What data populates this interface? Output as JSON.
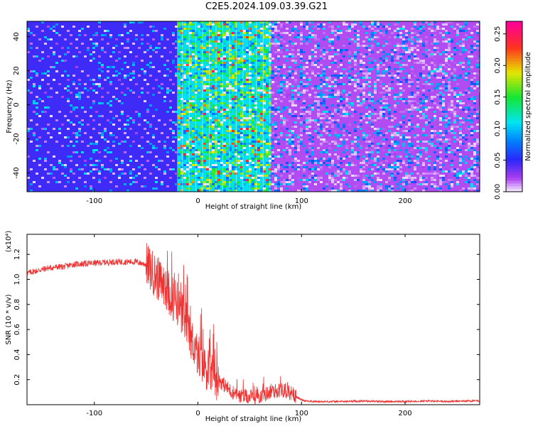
{
  "title": "C2E5.2024.109.03.39.G21",
  "chart_data": [
    {
      "type": "heatmap",
      "description_of_field": "spectrogram of normalized spectral amplitude versus height and frequency",
      "xlabel": "Height of straight line (km)",
      "ylabel": "Frequency (Hz)",
      "xlim": [
        -165,
        272
      ],
      "ylim": [
        -51,
        49
      ],
      "xticks": [
        -100,
        0,
        100,
        200
      ],
      "yticks": [
        -40,
        -20,
        0,
        20,
        40
      ],
      "colorbar": {
        "label": "Normalized spectral amplitude",
        "range": [
          0.0,
          0.27
        ],
        "ticks": [
          "0.00",
          "0.05",
          "0.10",
          "0.15",
          "0.20",
          "0.25"
        ]
      },
      "regions": [
        {
          "x_range": [
            -165,
            -20
          ],
          "dominant_value": 0.05,
          "note": "blue with periodic white/cyan streaks"
        },
        {
          "x_range": [
            -20,
            70
          ],
          "dominant_value": 0.12,
          "note": "cyan/green/yellow/red speckles, vertical stripes"
        },
        {
          "x_range": [
            70,
            272
          ],
          "dominant_value": 0.02,
          "note": "purple/violet with scattered blue-cyan speckles"
        }
      ]
    },
    {
      "type": "line",
      "xlabel": "Height of straight line (km)",
      "ylabel": "SNR (10 * v/v)",
      "y_multiplier_label": "(x10⁴)",
      "xlim": [
        -165,
        272
      ],
      "ylim": [
        0.0,
        1.36
      ],
      "xticks": [
        -100,
        0,
        100,
        200
      ],
      "yticks": [
        0.2,
        0.4,
        0.6,
        0.8,
        1.0,
        1.2
      ],
      "color": "#ee3333",
      "series": [
        {
          "x": [
            -165,
            -155,
            -145,
            -135,
            -130,
            -120,
            -100,
            -80,
            -60,
            -50,
            -45,
            -40,
            -35,
            -30,
            -25,
            -20,
            -15,
            -10,
            -5,
            0,
            5,
            10,
            15,
            20,
            25,
            30,
            35,
            40,
            50,
            60,
            70,
            80,
            85,
            90,
            95,
            100,
            105,
            110,
            120,
            140,
            160,
            180,
            200,
            220,
            240,
            260,
            272
          ],
          "y": [
            1.05,
            1.07,
            1.09,
            1.1,
            1.1,
            1.12,
            1.13,
            1.14,
            1.14,
            1.12,
            1.07,
            1.02,
            0.97,
            0.92,
            0.86,
            0.8,
            0.72,
            0.62,
            0.5,
            0.4,
            0.32,
            0.28,
            0.24,
            0.2,
            0.16,
            0.12,
            0.09,
            0.07,
            0.06,
            0.07,
            0.1,
            0.12,
            0.11,
            0.09,
            0.06,
            0.04,
            0.03,
            0.025,
            0.025,
            0.025,
            0.03,
            0.025,
            0.025,
            0.03,
            0.025,
            0.03,
            0.03
          ]
        }
      ]
    }
  ]
}
